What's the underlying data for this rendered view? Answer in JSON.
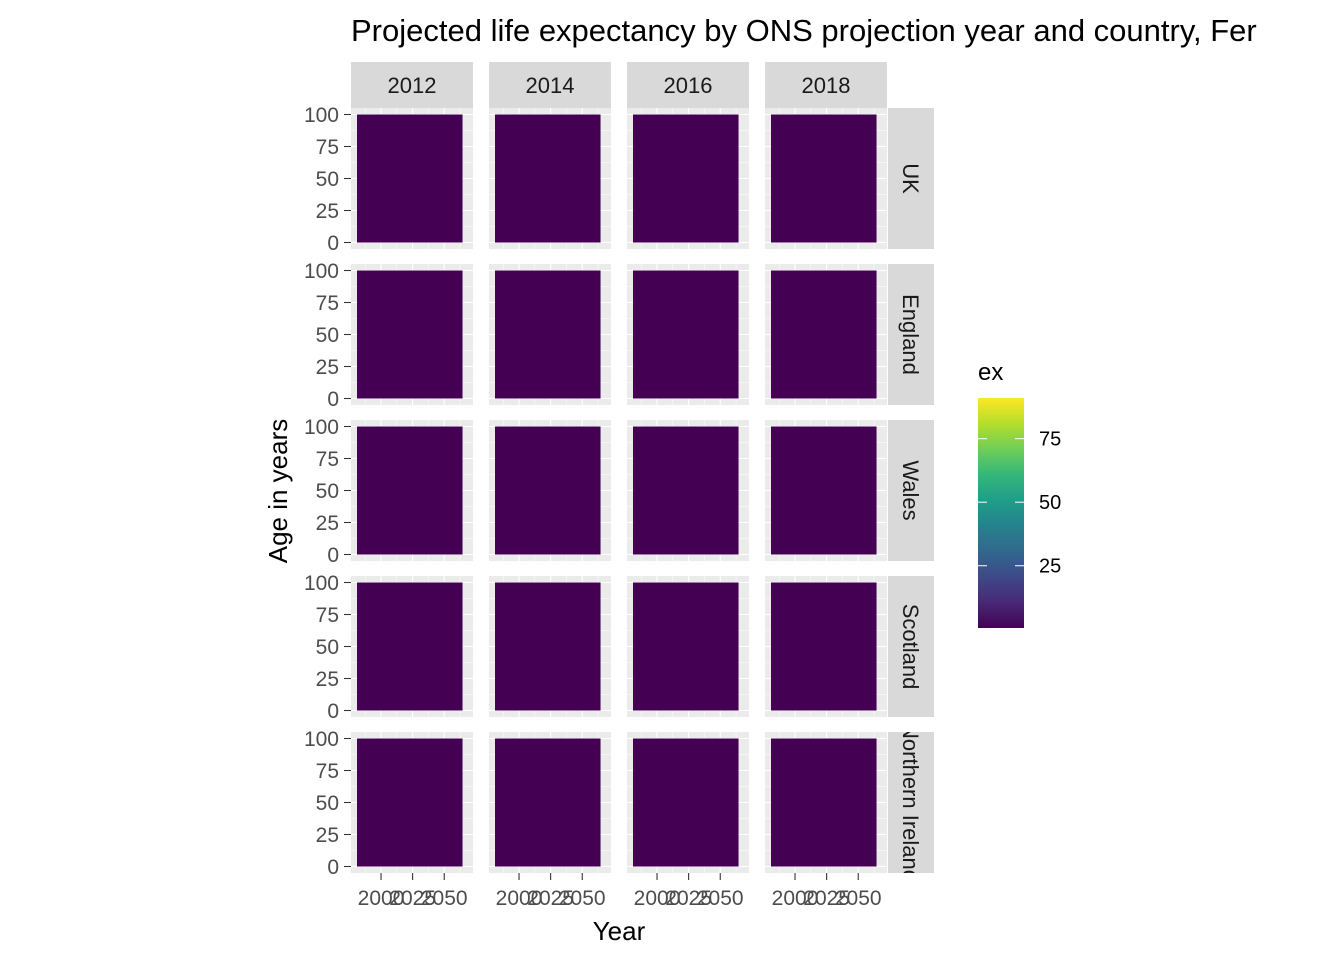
{
  "chart_data": {
    "type": "heatmap",
    "title": "Projected life expectancy by ONS projection year and country, Fer",
    "xlabel": "Year",
    "ylabel": "Age in years",
    "facet_cols": [
      "2012",
      "2014",
      "2016",
      "2018"
    ],
    "facet_rows": [
      "UK",
      "England",
      "Wales",
      "Scotland",
      "Northern Ireland"
    ],
    "x_range": [
      1981,
      2068
    ],
    "y_range": [
      0,
      100
    ],
    "x_ticks": [
      "2000",
      "2025",
      "2050"
    ],
    "x_tick_values": [
      2000,
      2025,
      2050
    ],
    "y_ticks": [
      "0",
      "25",
      "50",
      "75",
      "100"
    ],
    "y_tick_values": [
      0,
      25,
      50,
      75,
      100
    ],
    "fill_variable": "ex",
    "fill_range": [
      0.5,
      91
    ],
    "legend_ticks": [
      "25",
      "50",
      "75"
    ],
    "legend_tick_values": [
      25,
      50,
      75
    ],
    "legend_position": "right",
    "grid": true,
    "colors": {
      "panel_bg": "#ebebeb",
      "strip_bg": "#d9d9d9",
      "gridline": "#ffffff",
      "viridis": [
        "#440154",
        "#482878",
        "#3e4989",
        "#31688e",
        "#26828e",
        "#1f9e89",
        "#35b779",
        "#6ece58",
        "#b5de2b",
        "#fde725"
      ]
    }
  }
}
